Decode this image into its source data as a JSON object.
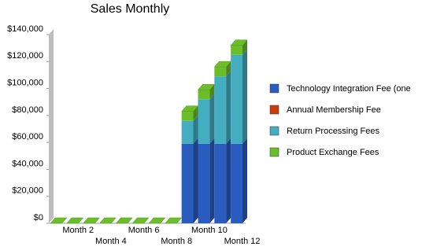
{
  "chart_data": {
    "type": "stacked-bar-3d",
    "title": "Sales Monthly",
    "categories": [
      null,
      "Month 2",
      null,
      "Month 4",
      null,
      "Month 6",
      null,
      "Month 8",
      null,
      "Month 10",
      null,
      "Month 12"
    ],
    "series": [
      {
        "name": "Technology Integration Fee (one",
        "color": "#2a5cbf",
        "values": [
          0,
          0,
          0,
          0,
          0,
          0,
          0,
          0,
          59000,
          59000,
          59000,
          59000
        ]
      },
      {
        "name": "Annual Membership Fee",
        "color": "#c83c0a",
        "values": [
          0,
          0,
          0,
          0,
          0,
          0,
          0,
          0,
          0,
          0,
          0,
          0
        ]
      },
      {
        "name": "Return Processing Fees",
        "color": "#45adc0",
        "values": [
          0,
          0,
          0,
          0,
          0,
          0,
          0,
          0,
          17000,
          33000,
          50000,
          66000
        ]
      },
      {
        "name": "Product Exchange Fees",
        "color": "#6cbd2a",
        "values": [
          0,
          0,
          0,
          0,
          0,
          0,
          0,
          0,
          7000,
          7000,
          7000,
          7000
        ]
      }
    ],
    "ylim": [
      0,
      140000
    ],
    "yticks": [
      {
        "value": 0,
        "label": "$0"
      },
      {
        "value": 20000,
        "label": "$20,000"
      },
      {
        "value": 40000,
        "label": "$40,000"
      },
      {
        "value": 60000,
        "label": "$60,000"
      },
      {
        "value": 80000,
        "label": "$80,000"
      },
      {
        "value": 100000,
        "label": "$100,000"
      },
      {
        "value": 120000,
        "label": "$120,000"
      },
      {
        "value": 140000,
        "label": "$140,000"
      }
    ]
  }
}
